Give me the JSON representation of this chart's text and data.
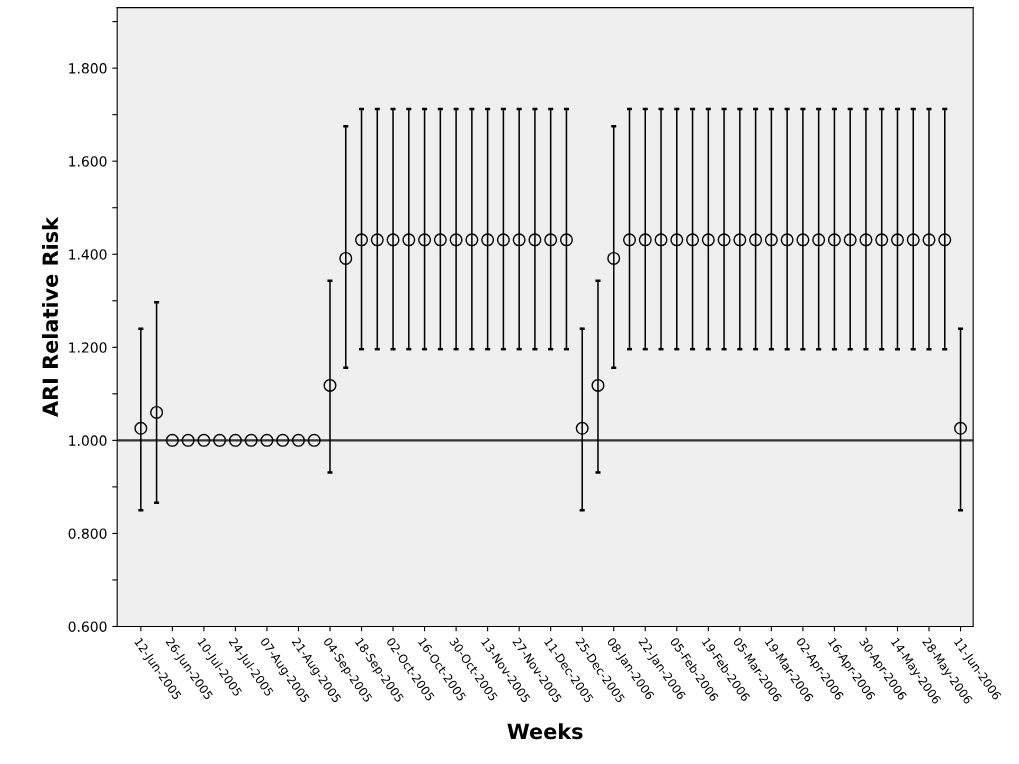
{
  "chart_data": {
    "type": "scatter",
    "xlabel": "Weeks",
    "ylabel": "ARI Relative Risk",
    "categories": [
      "12-Jun-2005",
      null,
      "26-Jun-2005",
      null,
      "10-Jul-2005",
      null,
      "24-Jul-2005",
      null,
      "07-Aug-2005",
      null,
      "21-Aug-2005",
      null,
      "04-Sep-2005",
      null,
      "18-Sep-2005",
      null,
      "02-Oct-2005",
      null,
      "16-Oct-2005",
      null,
      "30-Oct-2005",
      null,
      "13-Nov-2005",
      null,
      "27-Nov-2005",
      null,
      "11-Dec-2005",
      null,
      "25-Dec-2005",
      null,
      "08-Jan-2006",
      null,
      "22-Jan-2006",
      null,
      "05-Feb-2006",
      null,
      "19-Feb-2006",
      null,
      "05-Mar-2006",
      null,
      "19-Mar-2006",
      null,
      "02-Apr-2006",
      null,
      "16-Apr-2006",
      null,
      "30-Apr-2006",
      null,
      "14-May-2006",
      null,
      "28-May-2006",
      null,
      "11-Jun-2006"
    ],
    "values": [
      1.026,
      1.06,
      1.0,
      1.0,
      1.0,
      1.0,
      1.0,
      1.0,
      1.0,
      1.0,
      1.0,
      1.0,
      1.118,
      1.391,
      1.431,
      1.431,
      1.431,
      1.431,
      1.431,
      1.431,
      1.431,
      1.431,
      1.431,
      1.431,
      1.431,
      1.431,
      1.431,
      1.431,
      1.026,
      1.118,
      1.391,
      1.431,
      1.431,
      1.431,
      1.431,
      1.431,
      1.431,
      1.431,
      1.431,
      1.431,
      1.431,
      1.431,
      1.431,
      1.431,
      1.431,
      1.431,
      1.431,
      1.431,
      1.431,
      1.431,
      1.431,
      1.431,
      1.026
    ],
    "errors": [
      [
        0.85,
        1.24
      ],
      [
        0.866,
        1.297
      ],
      null,
      null,
      null,
      null,
      null,
      null,
      null,
      null,
      null,
      null,
      [
        0.931,
        1.343
      ],
      [
        1.156,
        1.675
      ],
      [
        1.196,
        1.712
      ],
      [
        1.196,
        1.712
      ],
      [
        1.196,
        1.712
      ],
      [
        1.196,
        1.712
      ],
      [
        1.196,
        1.712
      ],
      [
        1.196,
        1.712
      ],
      [
        1.196,
        1.712
      ],
      [
        1.196,
        1.712
      ],
      [
        1.196,
        1.712
      ],
      [
        1.196,
        1.712
      ],
      [
        1.196,
        1.712
      ],
      [
        1.196,
        1.712
      ],
      [
        1.196,
        1.712
      ],
      [
        1.196,
        1.712
      ],
      [
        0.85,
        1.24
      ],
      [
        0.931,
        1.343
      ],
      [
        1.156,
        1.675
      ],
      [
        1.196,
        1.712
      ],
      [
        1.196,
        1.712
      ],
      [
        1.196,
        1.712
      ],
      [
        1.196,
        1.712
      ],
      [
        1.196,
        1.712
      ],
      [
        1.196,
        1.712
      ],
      [
        1.196,
        1.712
      ],
      [
        1.196,
        1.712
      ],
      [
        1.196,
        1.712
      ],
      [
        1.196,
        1.712
      ],
      [
        1.196,
        1.712
      ],
      [
        1.196,
        1.712
      ],
      [
        1.196,
        1.712
      ],
      [
        1.196,
        1.712
      ],
      [
        1.196,
        1.712
      ],
      [
        1.196,
        1.712
      ],
      [
        1.196,
        1.712
      ],
      [
        1.196,
        1.712
      ],
      [
        1.196,
        1.712
      ],
      [
        1.196,
        1.712
      ],
      [
        1.196,
        1.712
      ],
      [
        0.85,
        1.24
      ]
    ],
    "color": "#000000",
    "marker": "circle",
    "ylim": [
      0.6,
      1.93
    ],
    "yticks": [
      {
        "value": 0.6,
        "label": "0.600"
      },
      {
        "value": 0.7,
        "label": null
      },
      {
        "value": 0.8,
        "label": "0.800"
      },
      {
        "value": 0.9,
        "label": null
      },
      {
        "value": 1.0,
        "label": "1.000"
      },
      {
        "value": 1.1,
        "label": null
      },
      {
        "value": 1.2,
        "label": "1.200"
      },
      {
        "value": 1.3,
        "label": null
      },
      {
        "value": 1.4,
        "label": "1.400"
      },
      {
        "value": 1.5,
        "label": null
      },
      {
        "value": 1.6,
        "label": "1.600"
      },
      {
        "value": 1.7,
        "label": null
      },
      {
        "value": 1.8,
        "label": "1.800"
      },
      {
        "value": 1.9,
        "label": null
      }
    ],
    "ref_lines": [
      {
        "axis": "y",
        "value": 1.0,
        "color": "#333333",
        "line_style": "solid"
      }
    ],
    "grid": false,
    "legend": false
  }
}
